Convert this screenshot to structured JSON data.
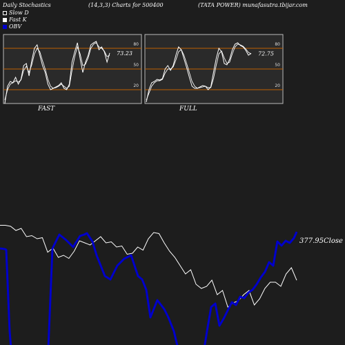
{
  "header": {
    "title": "Daily Stochastics",
    "params": "(14,3,3) Charts for 500400",
    "company": "(TATA POWER) munafasutra.tbijar.com"
  },
  "legend": {
    "slow_d": "Slow  D",
    "fast_k": "Fast K",
    "obv": "OBV"
  },
  "colors": {
    "background": "#1d1d1d",
    "panel": "#2a2a2a",
    "level_line": "#c06000",
    "stoch_line": "#ffffff",
    "obv_line": "#0000cc",
    "price_line": "#ffffff"
  },
  "chart_data": [
    {
      "type": "line",
      "title": "FAST",
      "ylim": [
        0,
        100
      ],
      "levels": [
        20,
        50,
        80
      ],
      "level_labels": [
        "80",
        "50",
        "20"
      ],
      "last_value_label": "73.23",
      "series": [
        {
          "name": "Fast K",
          "values": [
            0,
            25,
            32,
            30,
            38,
            28,
            35,
            55,
            58,
            40,
            62,
            80,
            85,
            70,
            55,
            45,
            28,
            20,
            22,
            24,
            26,
            30,
            22,
            20,
            28,
            60,
            75,
            88,
            65,
            45,
            60,
            70,
            85,
            88,
            90,
            78,
            82,
            75,
            60,
            73.23
          ]
        },
        {
          "name": "Slow  D",
          "values": [
            5,
            20,
            28,
            30,
            33,
            31,
            34,
            48,
            54,
            45,
            56,
            72,
            80,
            75,
            62,
            50,
            35,
            25,
            22,
            23,
            25,
            28,
            25,
            22,
            25,
            48,
            68,
            82,
            72,
            55,
            57,
            66,
            80,
            86,
            88,
            82,
            80,
            76,
            68,
            70
          ]
        }
      ]
    },
    {
      "type": "line",
      "title": "FULL",
      "ylim": [
        0,
        100
      ],
      "levels": [
        20,
        50,
        80
      ],
      "level_labels": [
        "80",
        "50",
        "20"
      ],
      "last_value_label": "72.75",
      "series": [
        {
          "name": "K",
          "values": [
            2,
            20,
            30,
            32,
            35,
            34,
            36,
            50,
            55,
            48,
            55,
            70,
            82,
            78,
            65,
            52,
            38,
            25,
            22,
            22,
            24,
            26,
            25,
            20,
            24,
            45,
            65,
            80,
            75,
            58,
            56,
            64,
            78,
            86,
            88,
            84,
            82,
            77,
            70,
            72.75
          ]
        },
        {
          "name": "D",
          "values": [
            5,
            15,
            25,
            30,
            33,
            33,
            35,
            44,
            50,
            50,
            53,
            63,
            75,
            78,
            70,
            58,
            45,
            32,
            25,
            22,
            23,
            24,
            25,
            23,
            23,
            36,
            55,
            72,
            76,
            66,
            58,
            60,
            72,
            82,
            86,
            85,
            83,
            79,
            74,
            72
          ]
        }
      ]
    },
    {
      "type": "line",
      "title": "",
      "last_value_label": "377.95Close",
      "series": [
        {
          "name": "Close",
          "values": [
            404.5,
            404.5,
            404,
            402,
            403,
            399,
            399.5,
            398,
            398.5,
            391.5,
            393.5,
            389,
            390,
            388.5,
            392,
            397,
            396,
            395,
            397,
            399,
            396,
            396.5,
            394,
            394.5,
            390.5,
            391,
            394,
            392.5,
            398,
            401,
            400.5,
            396,
            392,
            389,
            385,
            381,
            383,
            376,
            374,
            375,
            378,
            371,
            373,
            365,
            367,
            368,
            371,
            373,
            366,
            369,
            374,
            377,
            377,
            375,
            381,
            384,
            377.95
          ]
        },
        {
          "name": "OBV",
          "values": [
            -2000,
            -2000,
            -6500,
            -6500,
            -6500,
            -6500,
            -6500,
            -6500,
            -6500,
            -6500,
            -5000,
            -5000,
            -5000,
            -5000,
            -5000,
            -5000,
            -5000,
            -5000,
            -5000,
            -5000,
            -5000,
            -5000,
            -5000,
            -5000,
            -5000,
            -5000,
            -5000,
            -5000,
            -5000,
            -5000,
            -5000,
            -5000,
            -5000,
            -5000,
            -5000,
            -5000,
            -5000,
            -5000,
            -5000,
            -5000,
            -5000,
            -5000,
            -5000,
            -5000,
            -5000,
            -5000,
            -5000,
            -5000,
            -5000,
            -5000,
            -5000,
            -5000,
            -5000,
            -5000,
            -5000,
            -5000,
            -5000
          ]
        }
      ]
    }
  ]
}
